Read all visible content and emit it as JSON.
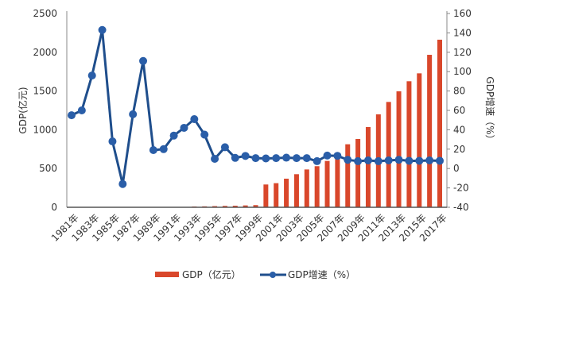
{
  "chart_data": {
    "type": "bar+line",
    "title": "",
    "categories": [
      "1981年",
      "1982年",
      "1983年",
      "1984年",
      "1985年",
      "1986年",
      "1987年",
      "1988年",
      "1989年",
      "1990年",
      "1991年",
      "1992年",
      "1993年",
      "1994年",
      "1995年",
      "1996年",
      "1997年",
      "1998年",
      "1999年",
      "2000年",
      "2001年",
      "2002年",
      "2003年",
      "2004年",
      "2005年",
      "2006年",
      "2007年",
      "2008年",
      "2009年",
      "2010年",
      "2011年",
      "2012年",
      "2013年",
      "2014年",
      "2015年",
      "2016年",
      "2017年"
    ],
    "tick_labels": [
      "1981年",
      "1983年",
      "1985年",
      "1987年",
      "1989年",
      "1991年",
      "1993年",
      "1995年",
      "1997年",
      "1999年",
      "2001年",
      "2003年",
      "2005年",
      "2007年",
      "2009年",
      "2011年",
      "2013年",
      "2015年",
      "2017年"
    ],
    "series": [
      {
        "name": "GDP（亿元）",
        "type": "bar",
        "axis": "left",
        "color": "#d9472b",
        "values": [
          0,
          0,
          0,
          0,
          0,
          0,
          0,
          0,
          0,
          0,
          0,
          0,
          10,
          12,
          15,
          18,
          20,
          24,
          28,
          294,
          311,
          369,
          427,
          488,
          530,
          598,
          676,
          813,
          881,
          1035,
          1199,
          1359,
          1496,
          1626,
          1728,
          1967,
          2162
        ]
      },
      {
        "name": "GDP增速（%）",
        "type": "line",
        "axis": "right",
        "color": "#1f4e8c",
        "values": [
          55,
          60,
          96,
          143,
          28,
          -16,
          56,
          111,
          19,
          20,
          34,
          42,
          51,
          35,
          10,
          22,
          11,
          13,
          10.7,
          10.4,
          10.7,
          11.2,
          10.7,
          10.7,
          7.6,
          13.4,
          13.1,
          9.0,
          7.6,
          8.4,
          7.6,
          8.4,
          9.0,
          8.0,
          8.0,
          8.4,
          8.0
        ]
      }
    ],
    "ylabel_left": "GDP(亿元)",
    "ylabel_right": "GDP增速（%）",
    "ylim_left": [
      0,
      2500
    ],
    "yticks_left": [
      "0",
      "500",
      "1000",
      "1500",
      "2000",
      "2500"
    ],
    "ylim_right": [
      -40,
      160
    ],
    "yticks_right": [
      "-40",
      "-20",
      "0",
      "20",
      "40",
      "60",
      "80",
      "100",
      "120",
      "140",
      "160"
    ],
    "grid": false,
    "legend_position": "bottom"
  }
}
